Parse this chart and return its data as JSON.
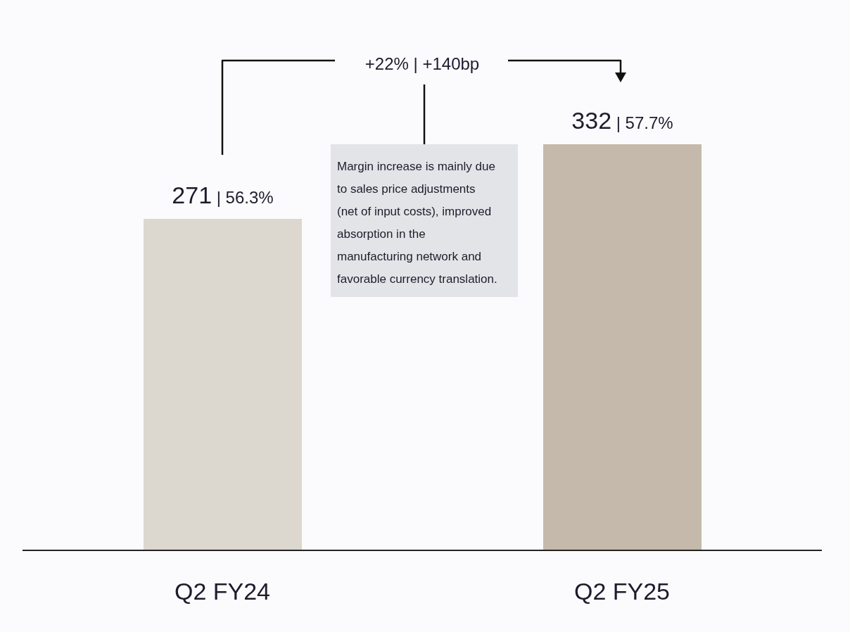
{
  "chart_data": {
    "type": "bar",
    "categories": [
      "Q2 FY24",
      "Q2 FY25"
    ],
    "values": [
      271,
      332
    ],
    "colors": [
      "#dcd7cf",
      "#c4b9aa"
    ],
    "value_labels": [
      "271 | 56.3%",
      "332 | 57.7%"
    ],
    "annotations": [
      "+22% | +140bp",
      "Margin increase is mainly due to sales price adjustments (net of input costs), improved absorption in the manufacturing network and favorable currency translation."
    ]
  }
}
